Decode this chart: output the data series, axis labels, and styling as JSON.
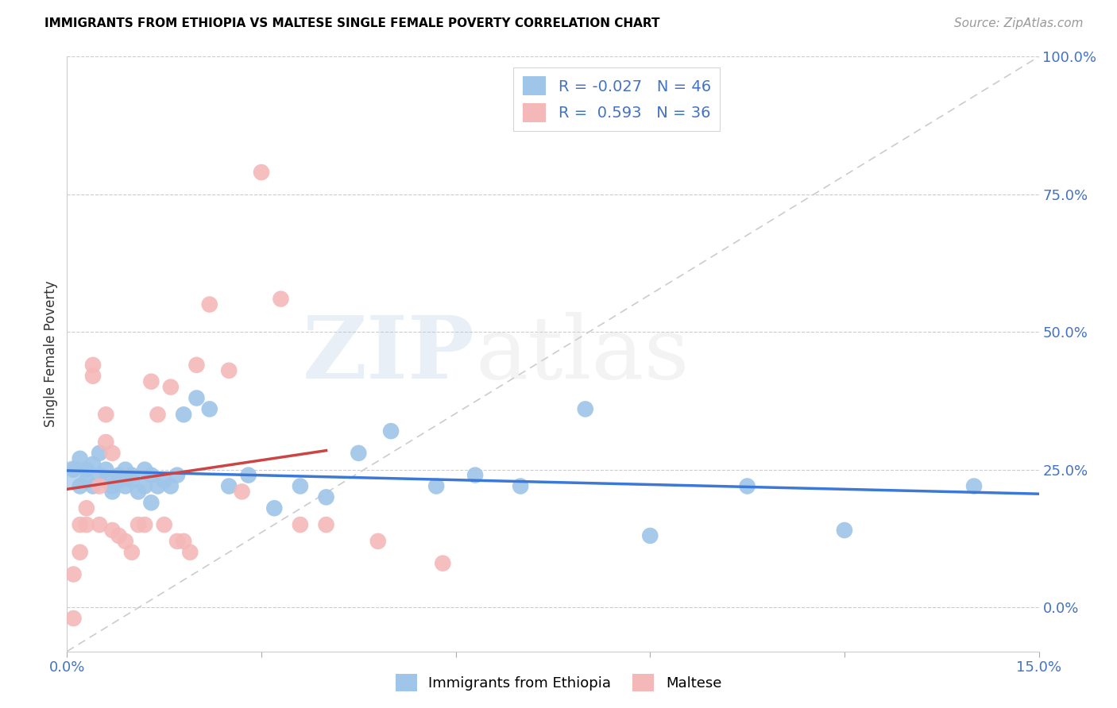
{
  "title": "IMMIGRANTS FROM ETHIOPIA VS MALTESE SINGLE FEMALE POVERTY CORRELATION CHART",
  "source": "Source: ZipAtlas.com",
  "ylabel": "Single Female Poverty",
  "legend_blue_r": "-0.027",
  "legend_blue_n": "46",
  "legend_pink_r": "0.593",
  "legend_pink_n": "36",
  "legend_label_blue": "Immigrants from Ethiopia",
  "legend_label_pink": "Maltese",
  "blue_color": "#9fc5e8",
  "pink_color": "#f4b8b8",
  "trendline_blue_color": "#3c78d8",
  "trendline_pink_color": "#cc4444",
  "diagonal_color": "#cccccc",
  "blue_points_x": [
    0.001,
    0.002,
    0.002,
    0.003,
    0.003,
    0.004,
    0.004,
    0.005,
    0.005,
    0.006,
    0.006,
    0.007,
    0.007,
    0.008,
    0.008,
    0.009,
    0.009,
    0.01,
    0.01,
    0.011,
    0.012,
    0.012,
    0.013,
    0.013,
    0.014,
    0.015,
    0.016,
    0.017,
    0.018,
    0.02,
    0.022,
    0.025,
    0.028,
    0.032,
    0.036,
    0.04,
    0.045,
    0.05,
    0.057,
    0.063,
    0.07,
    0.08,
    0.09,
    0.105,
    0.12,
    0.14
  ],
  "blue_points_y": [
    0.25,
    0.27,
    0.22,
    0.25,
    0.23,
    0.22,
    0.26,
    0.24,
    0.28,
    0.23,
    0.25,
    0.21,
    0.22,
    0.24,
    0.23,
    0.22,
    0.25,
    0.23,
    0.24,
    0.21,
    0.22,
    0.25,
    0.19,
    0.24,
    0.22,
    0.23,
    0.22,
    0.24,
    0.35,
    0.38,
    0.36,
    0.22,
    0.24,
    0.18,
    0.22,
    0.2,
    0.28,
    0.32,
    0.22,
    0.24,
    0.22,
    0.36,
    0.13,
    0.22,
    0.14,
    0.22
  ],
  "pink_points_x": [
    0.001,
    0.001,
    0.002,
    0.002,
    0.003,
    0.003,
    0.004,
    0.004,
    0.005,
    0.005,
    0.006,
    0.006,
    0.007,
    0.007,
    0.008,
    0.009,
    0.01,
    0.011,
    0.012,
    0.013,
    0.014,
    0.015,
    0.016,
    0.017,
    0.018,
    0.019,
    0.02,
    0.022,
    0.025,
    0.027,
    0.03,
    0.033,
    0.036,
    0.04,
    0.048,
    0.058
  ],
  "pink_points_y": [
    0.06,
    -0.02,
    0.15,
    0.1,
    0.18,
    0.15,
    0.44,
    0.42,
    0.22,
    0.15,
    0.35,
    0.3,
    0.28,
    0.14,
    0.13,
    0.12,
    0.1,
    0.15,
    0.15,
    0.41,
    0.35,
    0.15,
    0.4,
    0.12,
    0.12,
    0.1,
    0.44,
    0.55,
    0.43,
    0.21,
    0.79,
    0.56,
    0.15,
    0.15,
    0.12,
    0.08
  ],
  "xmin": 0.0,
  "xmax": 0.15,
  "ymin": -0.08,
  "ymax": 1.0,
  "ytick_vals": [
    0.0,
    0.25,
    0.5,
    0.75,
    1.0
  ],
  "ytick_labels": [
    "0.0%",
    "25.0%",
    "50.0%",
    "75.0%",
    "100.0%"
  ],
  "title_fontsize": 11,
  "source_fontsize": 11,
  "tick_fontsize": 13
}
